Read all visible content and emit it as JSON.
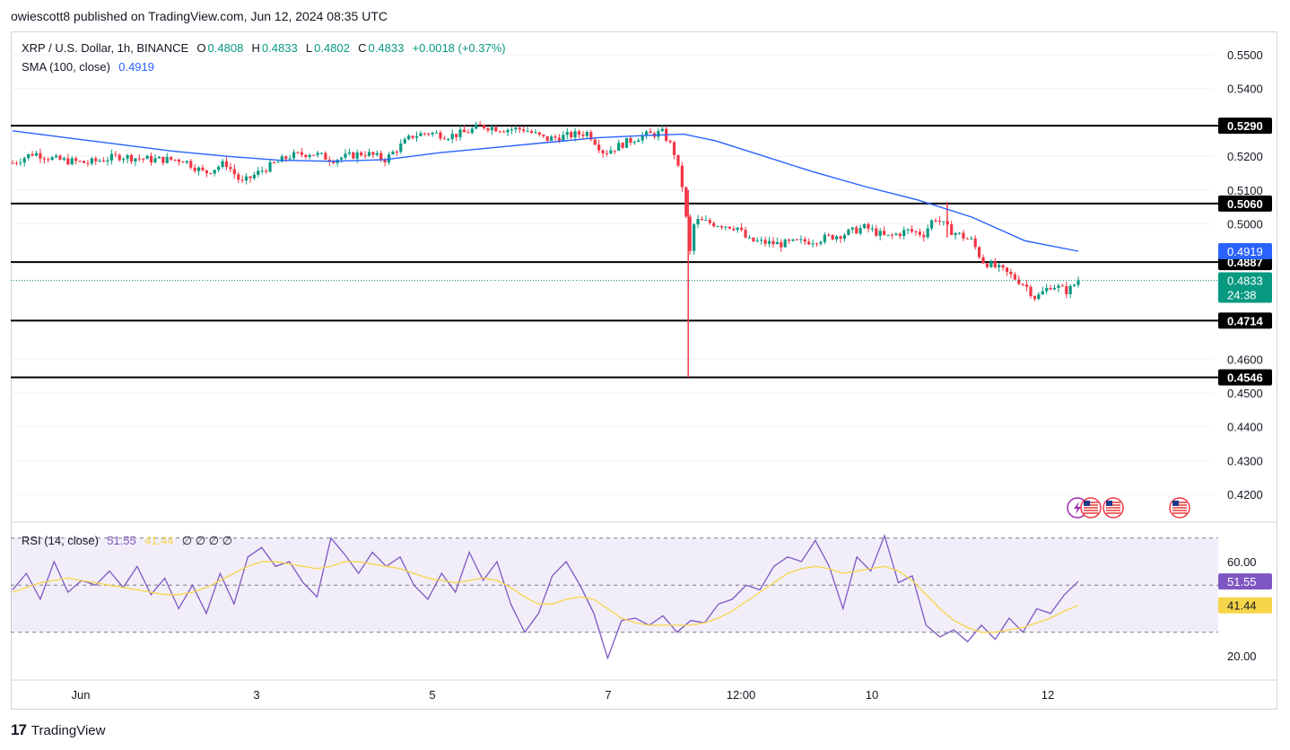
{
  "header": {
    "published": "owiescott8 published on TradingView.com, Jun 12, 2024 08:35 UTC"
  },
  "legend": {
    "symbol": "XRP / U.S. Dollar, 1h, BINANCE",
    "open_label": "O",
    "open": "0.4808",
    "high_label": "H",
    "high": "0.4833",
    "low_label": "L",
    "low": "0.4802",
    "close_label": "C",
    "close": "0.4833",
    "change": "+0.0018 (+0.37%)",
    "sma_label": "SMA (100, close)",
    "sma_value": "0.4919",
    "rsi_label": "RSI (14, close)",
    "rsi_value": "51.55",
    "rsi_ma_value": "41.44",
    "rsi_extra": "∅ ∅ ∅ ∅"
  },
  "footer": {
    "brand": "TradingView"
  },
  "colors": {
    "up": "#089981",
    "down": "#f23645",
    "sma": "#2962ff",
    "rsi": "#7e57c2",
    "rsi_ma": "#f7d54a",
    "level": "#000000"
  },
  "icons": [
    "lightning-event-icon",
    "us-flag-event-icon",
    "us-flag-event-icon",
    "us-flag-event-icon"
  ],
  "chart_data": [
    {
      "type": "candlestick",
      "title": "XRP / U.S. Dollar, 1h, BINANCE",
      "ylim": [
        0.415,
        0.557
      ],
      "y_ticks": [
        "0.5500",
        "0.5400",
        "0.5200",
        "0.5100",
        "0.5000",
        "0.4600",
        "0.4500",
        "0.4400",
        "0.4300",
        "0.4200"
      ],
      "x_ticks": [
        "Jun",
        "3",
        "5",
        "7",
        "12:00",
        "10",
        "12"
      ],
      "horizontal_levels": [
        "0.5290",
        "0.5060",
        "0.4887",
        "0.4714",
        "0.4546"
      ],
      "price_labels": {
        "sma": "0.4919",
        "last": "0.4833",
        "countdown": "24:38"
      },
      "close_path": [
        [
          0,
          0.518
        ],
        [
          0.02,
          0.521
        ],
        [
          0.04,
          0.519
        ],
        [
          0.07,
          0.518
        ],
        [
          0.1,
          0.52
        ],
        [
          0.13,
          0.519
        ],
        [
          0.16,
          0.519
        ],
        [
          0.18,
          0.515
        ],
        [
          0.2,
          0.518
        ],
        [
          0.215,
          0.512
        ],
        [
          0.235,
          0.516
        ],
        [
          0.26,
          0.52
        ],
        [
          0.28,
          0.521
        ],
        [
          0.3,
          0.519
        ],
        [
          0.33,
          0.521
        ],
        [
          0.35,
          0.519
        ],
        [
          0.36,
          0.522
        ],
        [
          0.375,
          0.526
        ],
        [
          0.39,
          0.527
        ],
        [
          0.41,
          0.526
        ],
        [
          0.425,
          0.527
        ],
        [
          0.44,
          0.529
        ],
        [
          0.46,
          0.528
        ],
        [
          0.48,
          0.528
        ],
        [
          0.5,
          0.525
        ],
        [
          0.52,
          0.526
        ],
        [
          0.54,
          0.527
        ],
        [
          0.555,
          0.521
        ],
        [
          0.575,
          0.524
        ],
        [
          0.59,
          0.526
        ],
        [
          0.61,
          0.527
        ],
        [
          0.62,
          0.522
        ],
        [
          0.63,
          0.509
        ],
        [
          0.635,
          0.49
        ],
        [
          0.64,
          0.501
        ],
        [
          0.66,
          0.5
        ],
        [
          0.68,
          0.499
        ],
        [
          0.69,
          0.495
        ],
        [
          0.72,
          0.494
        ],
        [
          0.75,
          0.495
        ],
        [
          0.78,
          0.497
        ],
        [
          0.8,
          0.499
        ],
        [
          0.82,
          0.496
        ],
        [
          0.84,
          0.498
        ],
        [
          0.855,
          0.497
        ],
        [
          0.865,
          0.502
        ],
        [
          0.88,
          0.498
        ],
        [
          0.9,
          0.495
        ],
        [
          0.91,
          0.489
        ],
        [
          0.93,
          0.486
        ],
        [
          0.95,
          0.482
        ],
        [
          0.96,
          0.478
        ],
        [
          0.975,
          0.482
        ],
        [
          0.99,
          0.48
        ],
        [
          1.0,
          0.4833
        ]
      ],
      "wicks": [
        {
          "x": 0.634,
          "high": 0.51,
          "low": 0.4546
        },
        {
          "x": 0.877,
          "high": 0.5065,
          "low": 0.496
        }
      ],
      "sma_path": [
        [
          0,
          0.5275
        ],
        [
          0.05,
          0.5255
        ],
        [
          0.1,
          0.5235
        ],
        [
          0.15,
          0.5215
        ],
        [
          0.2,
          0.52
        ],
        [
          0.25,
          0.5188
        ],
        [
          0.3,
          0.5185
        ],
        [
          0.35,
          0.519
        ],
        [
          0.4,
          0.521
        ],
        [
          0.45,
          0.5225
        ],
        [
          0.5,
          0.524
        ],
        [
          0.55,
          0.5255
        ],
        [
          0.6,
          0.5262
        ],
        [
          0.63,
          0.5265
        ],
        [
          0.66,
          0.5245
        ],
        [
          0.7,
          0.5205
        ],
        [
          0.75,
          0.5155
        ],
        [
          0.8,
          0.511
        ],
        [
          0.85,
          0.507
        ],
        [
          0.9,
          0.502
        ],
        [
          0.95,
          0.495
        ],
        [
          1.0,
          0.4919
        ]
      ]
    },
    {
      "type": "line",
      "title": "RSI (14, close)",
      "ylim": [
        15,
        75
      ],
      "y_ticks": [
        "60.00",
        "20.00"
      ],
      "band": [
        30,
        70
      ],
      "series": [
        {
          "name": "RSI (14, close)",
          "values": [
            48,
            55,
            44,
            60,
            47,
            52,
            50,
            56,
            49,
            58,
            46,
            53,
            40,
            50,
            38,
            55,
            42,
            62,
            66,
            58,
            60,
            51,
            45,
            70,
            63,
            55,
            64,
            58,
            62,
            50,
            44,
            55,
            47,
            64,
            52,
            60,
            42,
            30,
            38,
            54,
            60,
            50,
            38,
            19,
            35,
            36,
            33,
            37,
            30,
            35,
            34,
            42,
            44,
            50,
            48,
            58,
            62,
            60,
            69,
            58,
            40,
            62,
            56,
            71,
            51,
            54,
            33,
            28,
            31,
            26,
            33,
            27,
            36,
            30,
            40,
            38,
            46,
            51.55
          ]
        },
        {
          "name": "RSI MA",
          "values": [
            47,
            49,
            51,
            52,
            53,
            52,
            51,
            50,
            49,
            48,
            47,
            46,
            46,
            47,
            49,
            52,
            55,
            58,
            60,
            60,
            59,
            58,
            57,
            58,
            60,
            60,
            59,
            58,
            57,
            55,
            53,
            52,
            51,
            52,
            53,
            52,
            49,
            45,
            42,
            42,
            44,
            45,
            44,
            40,
            36,
            34,
            33,
            33,
            33,
            33,
            34,
            36,
            39,
            43,
            47,
            51,
            55,
            57,
            58,
            57,
            55,
            56,
            57,
            58,
            56,
            52,
            46,
            40,
            35,
            32,
            30,
            30,
            31,
            32,
            34,
            36,
            39,
            41.44
          ]
        }
      ],
      "price_labels": {
        "rsi": "51.55",
        "rsi_ma": "41.44"
      }
    }
  ]
}
